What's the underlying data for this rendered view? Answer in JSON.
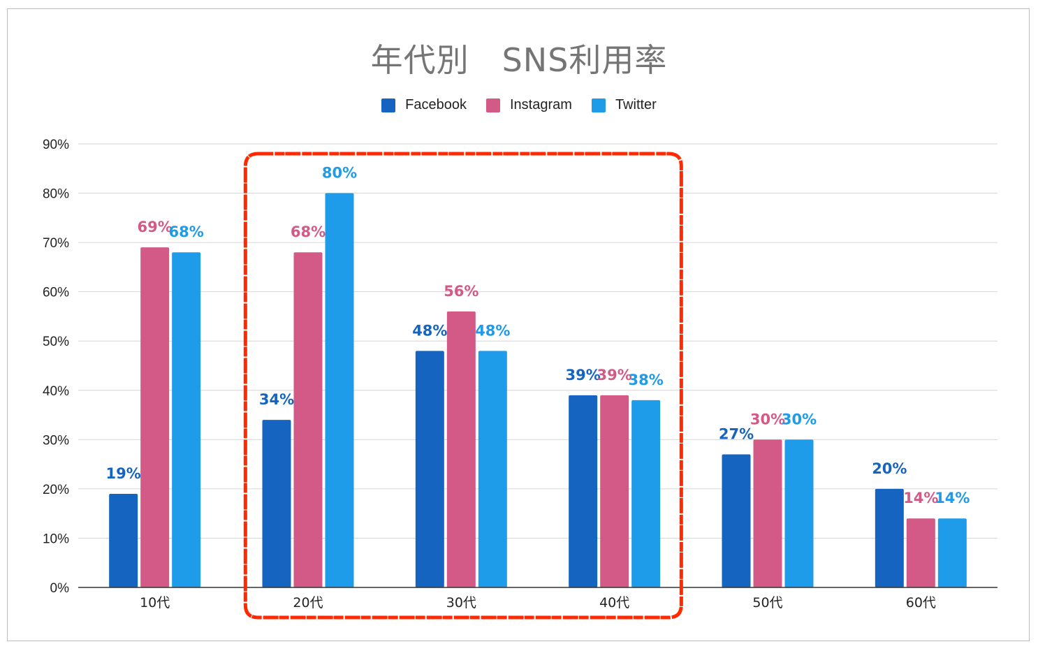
{
  "chart_data": {
    "type": "bar",
    "title": "年代別　SNS利用率",
    "xlabel": "",
    "ylabel": "",
    "categories": [
      "10代",
      "20代",
      "30代",
      "40代",
      "50代",
      "60代"
    ],
    "series": [
      {
        "name": "Facebook",
        "color": "#1565c0",
        "values": [
          19,
          34,
          48,
          39,
          27,
          20
        ],
        "labels": [
          "19%",
          "34%",
          "48%",
          "39%",
          "27%",
          "20%"
        ]
      },
      {
        "name": "Instagram",
        "color": "#d35a87",
        "values": [
          69,
          68,
          56,
          39,
          30,
          14
        ],
        "labels": [
          "69%",
          "68%",
          "56%",
          "39%",
          "30%",
          "14%"
        ]
      },
      {
        "name": "Twitter",
        "color": "#1e9be9",
        "values": [
          68,
          80,
          48,
          38,
          30,
          14
        ],
        "labels": [
          "68%",
          "80%",
          "48%",
          "38%",
          "30%",
          "14%"
        ]
      }
    ],
    "ylim": [
      0,
      90
    ],
    "yticks": [
      "0%",
      "10%",
      "20%",
      "30%",
      "40%",
      "50%",
      "60%",
      "70%",
      "80%",
      "90%"
    ],
    "grid": true,
    "legend_position": "top",
    "annotation": {
      "type": "highlight-box",
      "color": "#ff2a00",
      "categories": [
        "20代",
        "30代",
        "40代"
      ]
    }
  }
}
